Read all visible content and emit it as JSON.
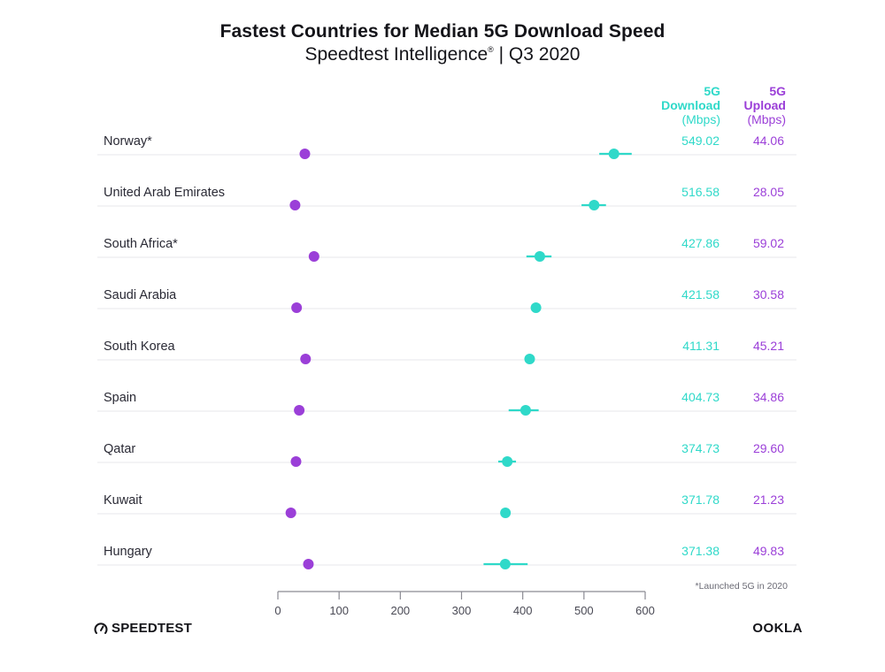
{
  "header": {
    "title": "Fastest Countries for Median 5G Download Speed",
    "subtitle_main": "Speedtest Intelligence",
    "subtitle_reg": "®",
    "subtitle_period": " | Q3 2020"
  },
  "columns": {
    "download": {
      "line1": "5G",
      "line2": "Download",
      "line3": "(Mbps)"
    },
    "upload": {
      "line1": "5G",
      "line2": "Upload",
      "line3": "(Mbps)"
    }
  },
  "colors": {
    "download": "#2fd9c9",
    "upload": "#9b3fd8",
    "row_line": "#ececef",
    "axis": "#8a8a92",
    "label_text": "#2a2a35"
  },
  "footnote": "*Launched 5G in 2020",
  "logos": {
    "speedtest": "SPEEDTEST",
    "speedtest_icon": "speedometer-icon",
    "ookla": "OOKLA"
  },
  "chart_data": {
    "type": "scatter",
    "subtype": "dot-plot with error bars",
    "title": "Fastest Countries for Median 5G Download Speed",
    "subtitle": "Speedtest Intelligence® | Q3 2020",
    "xlabel": "",
    "ylabel": "",
    "xlim": [
      0,
      600
    ],
    "x_ticks": [
      0,
      100,
      200,
      300,
      400,
      500,
      600
    ],
    "grid": false,
    "legend": "column headers top-right",
    "categories": [
      "Norway*",
      "United Arab Emirates",
      "South Africa*",
      "Saudi Arabia",
      "South Korea",
      "Spain",
      "Qatar",
      "Kuwait",
      "Hungary"
    ],
    "series": [
      {
        "name": "5G Download (Mbps)",
        "values": [
          549.02,
          516.58,
          427.86,
          421.58,
          411.31,
          404.73,
          374.73,
          371.78,
          371.38
        ],
        "error_low": [
          525,
          496,
          406,
          null,
          null,
          377,
          360,
          null,
          336
        ],
        "error_high": [
          578,
          536,
          447,
          null,
          null,
          426,
          389,
          null,
          408
        ]
      },
      {
        "name": "5G Upload (Mbps)",
        "values": [
          44.06,
          28.05,
          59.02,
          30.58,
          45.21,
          34.86,
          29.6,
          21.23,
          49.83
        ]
      }
    ],
    "value_labels": {
      "download": [
        "549.02",
        "516.58",
        "427.86",
        "421.58",
        "411.31",
        "404.73",
        "374.73",
        "371.78",
        "371.38"
      ],
      "upload": [
        "44.06",
        "28.05",
        "59.02",
        "30.58",
        "45.21",
        "34.86",
        "29.60",
        "21.23",
        "49.83"
      ]
    },
    "tick_labels": [
      "0",
      "100",
      "200",
      "300",
      "400",
      "500",
      "600"
    ]
  }
}
